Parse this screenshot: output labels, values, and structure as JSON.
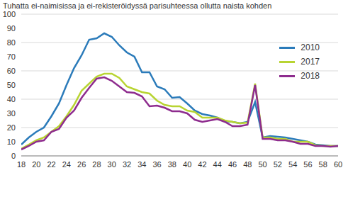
{
  "chart_data": {
    "type": "line",
    "title": "Tuhatta ei-naimisissa ja ei-rekisteröidyssä parisuhteessa ollutta naista kohden",
    "x": [
      18,
      19,
      20,
      21,
      22,
      23,
      24,
      25,
      26,
      27,
      28,
      29,
      30,
      31,
      32,
      33,
      34,
      35,
      36,
      37,
      38,
      39,
      40,
      41,
      42,
      43,
      44,
      45,
      46,
      47,
      48,
      49,
      50,
      51,
      52,
      53,
      54,
      55,
      56,
      57,
      58,
      59,
      60
    ],
    "series": [
      {
        "name": "2010",
        "color": "#2b7bba",
        "values": [
          8,
          13,
          17,
          20,
          28,
          37,
          50,
          62,
          71,
          82,
          83,
          86.5,
          84,
          78,
          73,
          70,
          59,
          59,
          49,
          47,
          41,
          41.5,
          37,
          32,
          29.5,
          28.5,
          27,
          24.5,
          24,
          23,
          24,
          38,
          13,
          14,
          13.5,
          13,
          12,
          11,
          10,
          8,
          7.5,
          7,
          7
        ]
      },
      {
        "name": "2017",
        "color": "#b8d432",
        "values": [
          5,
          8,
          11,
          13,
          17,
          21,
          28,
          36,
          46,
          51,
          56,
          58,
          58,
          55,
          49,
          47,
          45,
          44,
          39,
          36,
          35,
          35,
          32,
          31,
          27,
          27,
          27,
          25,
          24,
          23,
          23.5,
          51,
          13,
          13,
          12,
          12,
          10,
          10,
          10,
          7.5,
          7,
          7,
          7
        ]
      },
      {
        "name": "2018",
        "color": "#8e2c8e",
        "values": [
          4.5,
          7,
          10,
          11,
          17,
          19,
          27,
          32,
          41,
          48,
          54.5,
          55.5,
          53,
          49,
          45,
          44.5,
          42,
          35,
          35.5,
          34,
          31.5,
          31.5,
          30,
          25.5,
          24,
          25,
          26,
          24,
          21,
          21,
          22,
          50,
          12,
          12,
          11,
          11,
          10,
          8.5,
          8.5,
          7,
          7,
          6.5,
          7
        ]
      }
    ],
    "xlim": [
      18,
      60
    ],
    "xticks": [
      18,
      20,
      22,
      24,
      26,
      28,
      30,
      32,
      34,
      36,
      38,
      40,
      42,
      44,
      46,
      48,
      50,
      52,
      54,
      56,
      58,
      60
    ],
    "ylim": [
      0,
      100
    ],
    "yticks": [
      0,
      10,
      20,
      30,
      40,
      50,
      60,
      70,
      80,
      90,
      100
    ],
    "grid": true,
    "legend": "upper right"
  }
}
